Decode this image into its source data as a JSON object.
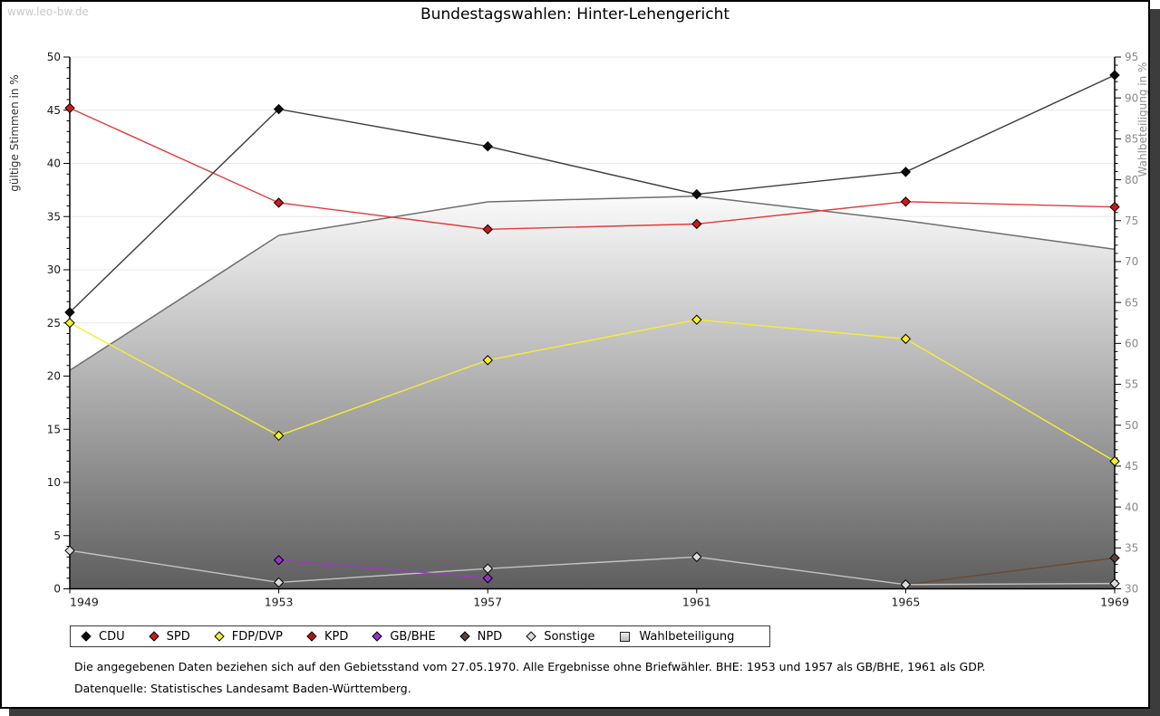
{
  "watermark": "www.leo-bw.de",
  "title": "Bundestagswahlen:  Hinter-Lehengericht",
  "footnotes": {
    "line1": "Die angegebenen Daten beziehen sich auf den Gebietsstand vom 27.05.1970. Alle Ergebnisse ohne Briefwähler. BHE: 1953 und 1957 als GB/BHE, 1961 als GDP.",
    "line2": "Datenquelle: Statistisches Landesamt Baden-Württemberg."
  },
  "chart_data": {
    "type": "line",
    "x": [
      1949,
      1953,
      1957,
      1961,
      1965,
      1969
    ],
    "left_axis": {
      "label": "gültige Stimmen in %",
      "min": 0,
      "max": 50,
      "step": 5,
      "minor_step": 1
    },
    "right_axis": {
      "label": "Wahlbeteiligung in %",
      "min": 30,
      "max": 95,
      "step": 5,
      "minor_step": 1
    },
    "grid": true,
    "legend_position": "bottom",
    "series": [
      {
        "name": "CDU",
        "kind": "line",
        "axis": "left",
        "line_color": "#3c3c3c",
        "marker_color": "#0a0a0a",
        "values": [
          26.0,
          45.1,
          41.6,
          37.1,
          39.2,
          48.3
        ]
      },
      {
        "name": "SPD",
        "kind": "line",
        "axis": "left",
        "line_color": "#e23b3b",
        "marker_color": "#cc1a1a",
        "values": [
          45.2,
          36.3,
          33.8,
          34.3,
          36.4,
          35.9
        ]
      },
      {
        "name": "FDP/DVP",
        "kind": "line",
        "axis": "left",
        "line_color": "#f5ef30",
        "marker_color": "#f7ef2a",
        "values": [
          25.0,
          14.4,
          21.5,
          25.3,
          23.5,
          12.0
        ]
      },
      {
        "name": "KPD",
        "kind": "line",
        "axis": "left",
        "line_color": "#b01515",
        "marker_color": "#b01515",
        "values": [
          null,
          null,
          null,
          null,
          null,
          null
        ]
      },
      {
        "name": "GB/BHE",
        "kind": "line",
        "axis": "left",
        "line_color": "#9a3bbf",
        "marker_color": "#9633c8",
        "values": [
          null,
          2.7,
          1.0,
          null,
          null,
          null
        ]
      },
      {
        "name": "NPD",
        "kind": "line",
        "axis": "left",
        "line_color": "#6a4a33",
        "marker_color": "#5d4037",
        "values": [
          null,
          null,
          null,
          null,
          0.4,
          2.9
        ]
      },
      {
        "name": "Sonstige",
        "kind": "line",
        "axis": "left",
        "line_color": "#c4c4c4",
        "marker_color": "#dcdcdc",
        "values": [
          3.6,
          0.6,
          1.9,
          3.0,
          0.4,
          0.5
        ]
      },
      {
        "name": "Wahlbeteiligung",
        "kind": "area",
        "axis": "right",
        "line_color": "#6e6e6e",
        "fill_top": "#fbfbfb",
        "fill_bottom": "#5e5e5e",
        "values": [
          56.7,
          73.2,
          77.3,
          78.0,
          75.0,
          71.5
        ]
      }
    ],
    "colors": {
      "grid": "#e8e8e8",
      "axis": "#000000",
      "left_tick_text": "#1a1a1a",
      "right_tick_text": "#8a8a8a"
    }
  }
}
